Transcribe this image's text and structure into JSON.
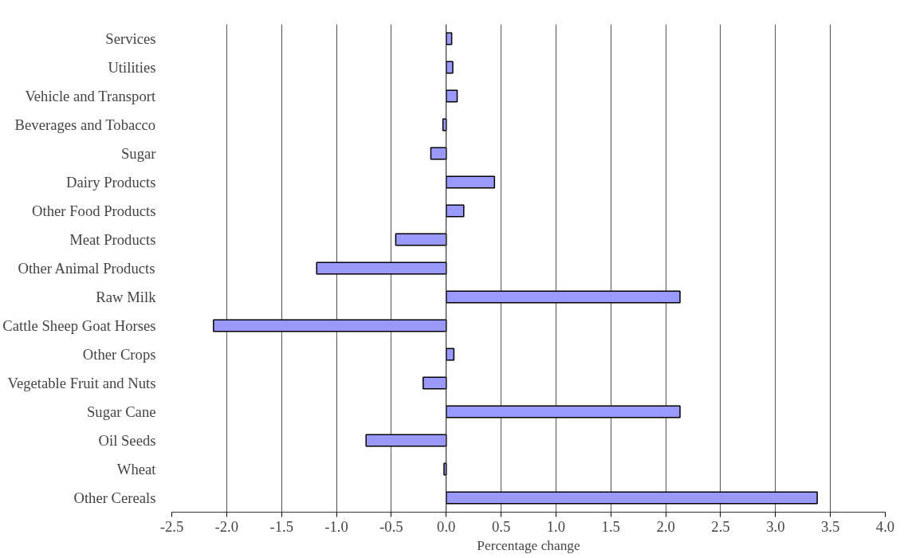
{
  "chart_data": {
    "type": "bar",
    "orientation": "horizontal",
    "xlabel": "Percentage change",
    "categories": [
      "Services",
      "Utilities",
      "Vehicle and Transport",
      "Beverages and Tobacco",
      "Sugar",
      "Dairy Products",
      "Other Food Products",
      "Meat Products",
      "Other Animal Products",
      "Raw Milk",
      "Cattle Sheep Goat Horses",
      "Other Crops",
      "Vegetable Fruit and Nuts",
      "Sugar Cane",
      "Oil Seeds",
      "Wheat",
      "Other Cereals"
    ],
    "values": [
      0.05,
      0.06,
      0.1,
      -0.03,
      -0.14,
      0.44,
      0.16,
      -0.46,
      -1.18,
      2.13,
      -2.12,
      0.07,
      -0.21,
      2.13,
      -0.73,
      -0.02,
      3.38
    ],
    "color": "#9999ff",
    "xlim": [
      -2.5,
      4.0
    ],
    "xticks": [
      {
        "value": -2.5,
        "label": "-2.5"
      },
      {
        "value": -2,
        "label": "-2.0"
      },
      {
        "value": -1.5,
        "label": "-1.5"
      },
      {
        "value": -1,
        "label": "-1.0"
      },
      {
        "value": -0.5,
        "label": "-0.5"
      },
      {
        "value": 0,
        "label": "0.0"
      },
      {
        "value": 0.5,
        "label": "0.5"
      },
      {
        "value": 1,
        "label": "1.0"
      },
      {
        "value": 1.5,
        "label": "1.5"
      },
      {
        "value": 2,
        "label": "2.0"
      },
      {
        "value": 2.5,
        "label": "2.5"
      },
      {
        "value": 3,
        "label": "3.0"
      },
      {
        "value": 3.5,
        "label": "3.5"
      },
      {
        "value": 4,
        "label": "4.0"
      }
    ],
    "grid": "x"
  }
}
